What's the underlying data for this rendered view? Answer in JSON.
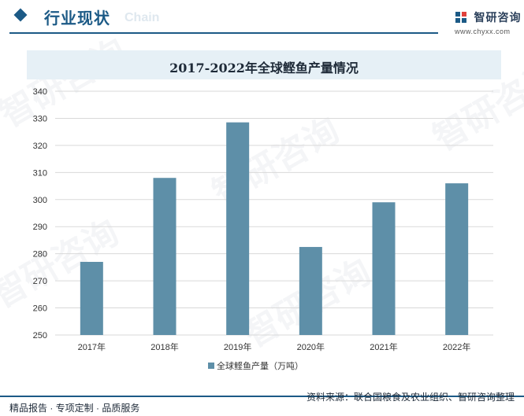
{
  "header": {
    "section_title": "行业现状",
    "section_bg_text": "Chain",
    "logo_text": "智研咨询",
    "logo_url": "www.chyxx.com"
  },
  "colors": {
    "brand": "#1c5a86",
    "bar": "#5e8fa8",
    "title_bg": "#e6f0f6"
  },
  "chart_data": {
    "type": "bar",
    "title": "2017-2022年全球鲣鱼产量情况",
    "categories": [
      "2017年",
      "2018年",
      "2019年",
      "2020年",
      "2021年",
      "2022年"
    ],
    "series": [
      {
        "name": "全球鲣鱼产量（万吨）",
        "values": [
          277,
          308,
          328.5,
          282.5,
          299,
          306
        ]
      }
    ],
    "ylim": [
      250,
      340
    ],
    "yticks": [
      250,
      260,
      270,
      280,
      290,
      300,
      310,
      320,
      330,
      340
    ],
    "grid": true,
    "legend": "bottom"
  },
  "footer": {
    "left": "精品报告 · 专项定制 · 品质服务",
    "right": "资料来源：联合国粮食及农业组织、智研咨询整理"
  },
  "watermark": "智研咨询"
}
